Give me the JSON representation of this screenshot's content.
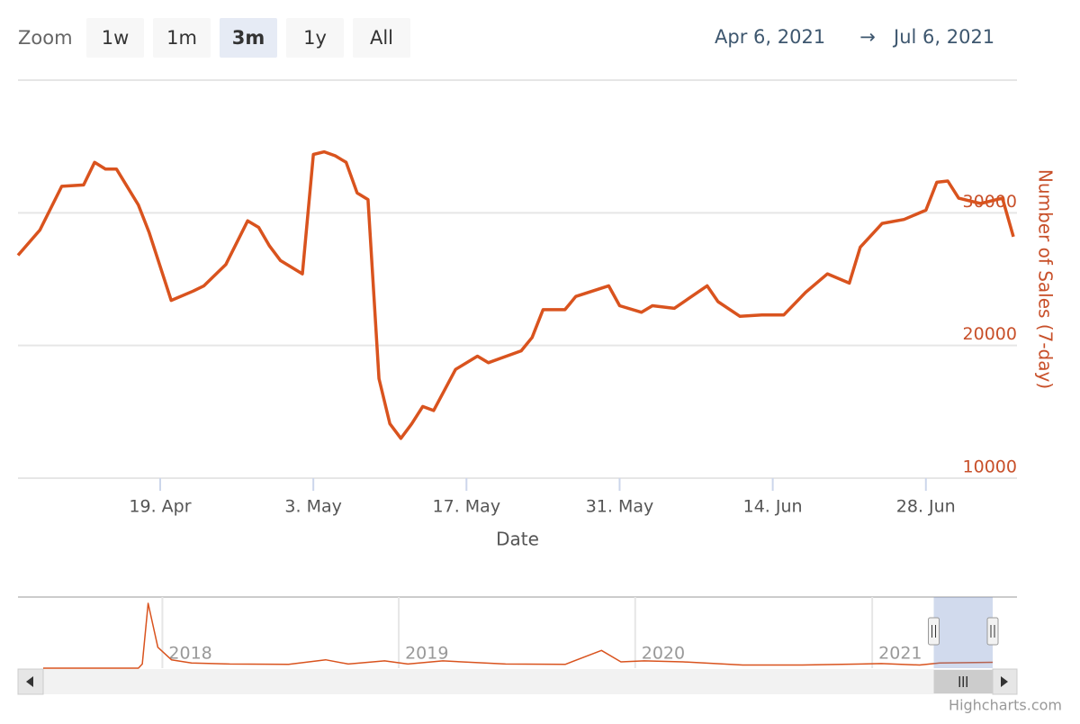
{
  "range_selector": {
    "label": "Zoom",
    "buttons": [
      "1w",
      "1m",
      "3m",
      "1y",
      "All"
    ],
    "selected_index": 2,
    "from": "Apr 6, 2021",
    "arrow": "→",
    "to": "Jul 6, 2021"
  },
  "chart_data": {
    "type": "line",
    "color": "#d9531e",
    "x": [
      "2021-04-06",
      "2021-04-08",
      "2021-04-10",
      "2021-04-12",
      "2021-04-13",
      "2021-04-14",
      "2021-04-15",
      "2021-04-17",
      "2021-04-18",
      "2021-04-20",
      "2021-04-22",
      "2021-04-23",
      "2021-04-25",
      "2021-04-27",
      "2021-04-28",
      "2021-04-29",
      "2021-04-30",
      "2021-05-02",
      "2021-05-03",
      "2021-05-04",
      "2021-05-05",
      "2021-05-06",
      "2021-05-07",
      "2021-05-08",
      "2021-05-09",
      "2021-05-10",
      "2021-05-11",
      "2021-05-12",
      "2021-05-13",
      "2021-05-14",
      "2021-05-16",
      "2021-05-18",
      "2021-05-19",
      "2021-05-20",
      "2021-05-22",
      "2021-05-23",
      "2021-05-24",
      "2021-05-26",
      "2021-05-27",
      "2021-05-30",
      "2021-05-31",
      "2021-06-02",
      "2021-06-03",
      "2021-06-05",
      "2021-06-08",
      "2021-06-09",
      "2021-06-11",
      "2021-06-13",
      "2021-06-15",
      "2021-06-17",
      "2021-06-19",
      "2021-06-21",
      "2021-06-22",
      "2021-06-24",
      "2021-06-26",
      "2021-06-28",
      "2021-06-29",
      "2021-06-30",
      "2021-07-01",
      "2021-07-03",
      "2021-07-05",
      "2021-07-06"
    ],
    "values": [
      26800,
      28700,
      32000,
      32100,
      33800,
      33300,
      33300,
      30600,
      28500,
      23400,
      24100,
      24500,
      26100,
      29400,
      28900,
      27500,
      26400,
      25400,
      34400,
      34600,
      34300,
      33800,
      31500,
      31000,
      17500,
      14100,
      13000,
      14100,
      15400,
      15100,
      18200,
      19200,
      18700,
      19000,
      19600,
      20600,
      22700,
      22700,
      23700,
      24500,
      23000,
      22500,
      23000,
      22800,
      24500,
      23300,
      22200,
      22300,
      22300,
      24000,
      25400,
      24700,
      27400,
      29200,
      29500,
      30200,
      32300,
      32400,
      31100,
      30700,
      31100,
      28200
    ],
    "xlim": [
      "2021-04-06",
      "2021-07-06"
    ],
    "xticks": [
      {
        "value": "2021-04-19",
        "label": "19. Apr"
      },
      {
        "value": "2021-05-03",
        "label": "3. May"
      },
      {
        "value": "2021-05-17",
        "label": "17. May"
      },
      {
        "value": "2021-05-31",
        "label": "31. May"
      },
      {
        "value": "2021-06-14",
        "label": "14. Jun"
      },
      {
        "value": "2021-06-28",
        "label": "28. Jun"
      }
    ],
    "ylim": [
      10000,
      40000
    ],
    "yticks": [
      10000,
      20000,
      30000
    ],
    "grid": true,
    "y_axis_side": "right",
    "x_label": "Date",
    "y_label": "Number of Sales (7-day)"
  },
  "navigator": {
    "type": "line",
    "color": "#d9531e",
    "x": [
      "2017-07-01",
      "2017-11-25",
      "2017-12-01",
      "2017-12-10",
      "2017-12-25",
      "2018-01-15",
      "2018-02-15",
      "2018-04-15",
      "2018-07-15",
      "2018-09-10",
      "2018-10-15",
      "2018-12-10",
      "2019-01-15",
      "2019-03-10",
      "2019-06-15",
      "2019-09-15",
      "2019-11-10",
      "2019-12-10",
      "2020-01-15",
      "2020-03-15",
      "2020-06-15",
      "2020-09-15",
      "2020-12-15",
      "2021-01-15",
      "2021-03-15",
      "2021-04-15",
      "2021-07-06"
    ],
    "values": [
      0,
      0,
      20000,
      310000,
      100000,
      40000,
      25000,
      20000,
      18000,
      40000,
      20000,
      35000,
      20000,
      35000,
      20000,
      18000,
      85000,
      30000,
      35000,
      30000,
      15000,
      15000,
      20000,
      22000,
      15000,
      25000,
      28000
    ],
    "xlim": [
      "2017-07-01",
      "2021-07-06"
    ],
    "ylim": [
      0,
      340000
    ],
    "xticks": [
      {
        "value": "2018-01-01",
        "label": "2018"
      },
      {
        "value": "2019-01-01",
        "label": "2019"
      },
      {
        "value": "2020-01-01",
        "label": "2020"
      },
      {
        "value": "2021-01-01",
        "label": "2021"
      }
    ]
  },
  "credits": "Highcharts.com"
}
